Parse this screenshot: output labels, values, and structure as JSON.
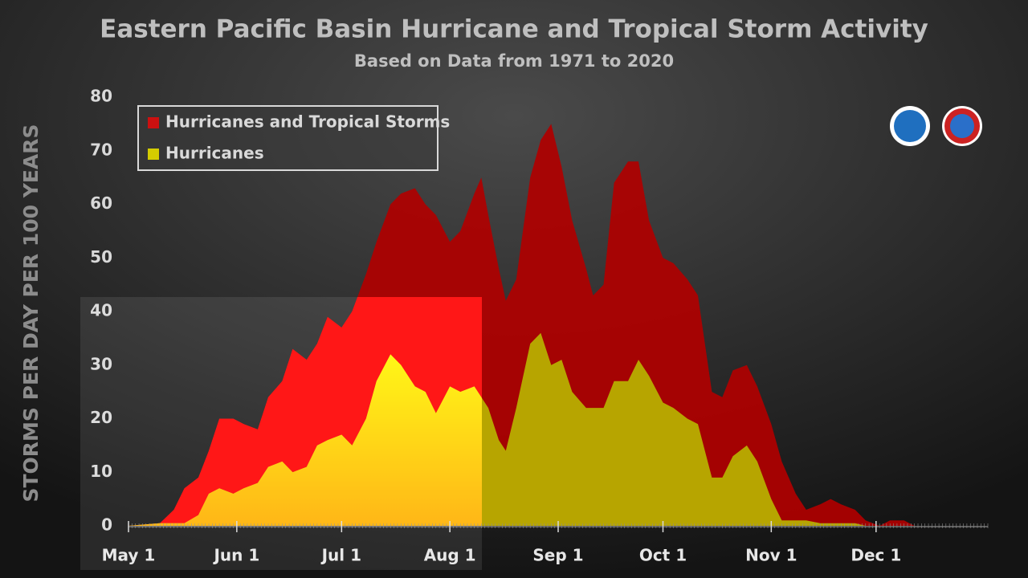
{
  "chart_data": {
    "type": "area",
    "title": "Eastern Pacific Basin Hurricane and Tropical Storm Activity",
    "subtitle": "Based on Data from 1971 to 2020",
    "y_label": "STORMS PER DAY PER 100 YEARS",
    "x": [
      0,
      9,
      13,
      16,
      20,
      23,
      26,
      30,
      33,
      37,
      40,
      44,
      47,
      51,
      54,
      57,
      61,
      64,
      68,
      71,
      75,
      78,
      82,
      85,
      88,
      92,
      95,
      99,
      101,
      103,
      106,
      108,
      111,
      115,
      118,
      121,
      124,
      127,
      131,
      133,
      136,
      139,
      143,
      146,
      149,
      153,
      156,
      160,
      163,
      167,
      170,
      173,
      177,
      180,
      184,
      187,
      191,
      194,
      198,
      201,
      204,
      208,
      211,
      215,
      218,
      222,
      225,
      245
    ],
    "series": [
      {
        "name": "Hurricanes and Tropical Storms",
        "color": "#b00000",
        "values": [
          0,
          0.5,
          3,
          7,
          9,
          14,
          20,
          20,
          19,
          18,
          24,
          27,
          33,
          31,
          34,
          39,
          37,
          40,
          47,
          53,
          60,
          62,
          63,
          60,
          58,
          53,
          55,
          62,
          65,
          58,
          48,
          42,
          46,
          65,
          72,
          75,
          67,
          57,
          48,
          43,
          45,
          64,
          68,
          68,
          57,
          50,
          49,
          46,
          43,
          25,
          24,
          29,
          30,
          26,
          19,
          12,
          6,
          3,
          4,
          5,
          4,
          3,
          1,
          0,
          1,
          1,
          0,
          0
        ]
      },
      {
        "name": "Hurricanes",
        "color": "#b8b300",
        "values": [
          0,
          0.5,
          0.5,
          0.5,
          2,
          6,
          7,
          6,
          7,
          8,
          11,
          12,
          10,
          11,
          15,
          16,
          17,
          15,
          20,
          27,
          32,
          30,
          26,
          25,
          21,
          26,
          25,
          26,
          24,
          22,
          16,
          14,
          22,
          34,
          36,
          30,
          31,
          25,
          22,
          22,
          22,
          27,
          27,
          31,
          28,
          23,
          22,
          20,
          19,
          9,
          9,
          13,
          15,
          12,
          5,
          1,
          1,
          1,
          0.5,
          0.5,
          0.5,
          0.5,
          0,
          0,
          0,
          0,
          0,
          0
        ]
      }
    ],
    "xlim": [
      0,
      246
    ],
    "xticks": [
      {
        "value": 0,
        "label": "May 1"
      },
      {
        "value": 31,
        "label": "Jun 1"
      },
      {
        "value": 61,
        "label": "Jul 1"
      },
      {
        "value": 92,
        "label": "Aug 1"
      },
      {
        "value": 123,
        "label": "Sep 1"
      },
      {
        "value": 153,
        "label": "Oct 1"
      },
      {
        "value": 184,
        "label": "Nov 1"
      },
      {
        "value": 214,
        "label": "Dec 1"
      }
    ],
    "ylim": [
      0,
      80
    ],
    "yticks": [
      0,
      10,
      20,
      30,
      40,
      50,
      60,
      70,
      80
    ],
    "legend": "top-left"
  }
}
